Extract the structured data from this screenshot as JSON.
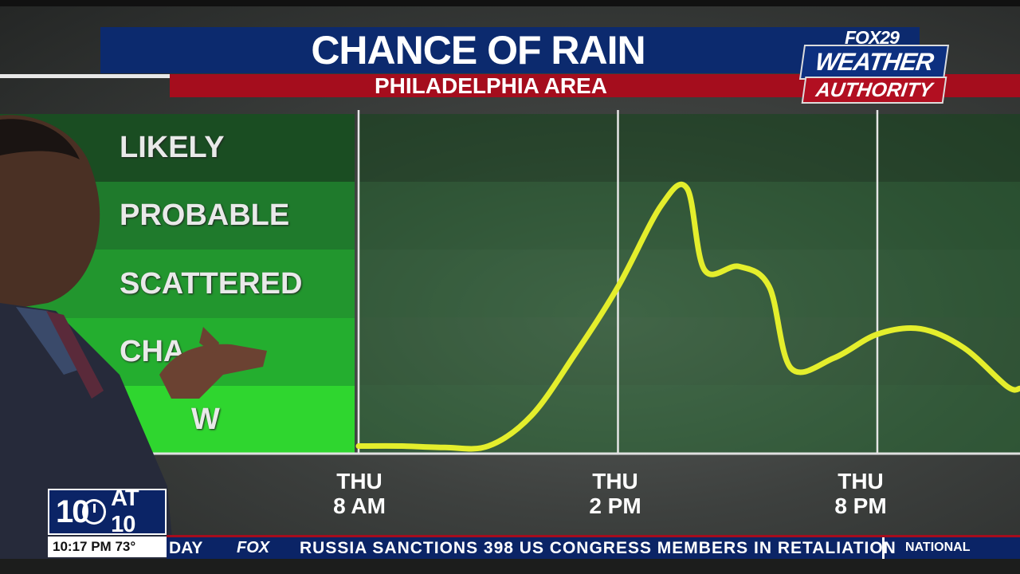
{
  "header": {
    "title": "CHANCE OF RAIN",
    "subtitle": "PHILADELPHIA AREA"
  },
  "logo": {
    "network": "FOX29",
    "line1": "WEATHER",
    "line2": "AUTHORITY"
  },
  "scale": {
    "levels": [
      "LIKELY",
      "PROBABLE",
      "SCATTERED",
      "CHANCE",
      "LOW"
    ],
    "visible_text": [
      "LIKELY",
      "PROBABLE",
      "SCATTERED",
      "CHA",
      "W"
    ],
    "colors": [
      "#1a4d22",
      "#1f7a2c",
      "#22962e",
      "#24ae2f",
      "#2fd62f"
    ]
  },
  "chart_data": {
    "type": "line",
    "title": "CHANCE OF RAIN",
    "subtitle": "PHILADELPHIA AREA",
    "x_tick_labels": [
      {
        "day": "THU",
        "time": "8 AM"
      },
      {
        "day": "THU",
        "time": "2 PM"
      },
      {
        "day": "THU",
        "time": "8 PM"
      }
    ],
    "x_unit": "hour",
    "xlim": [
      8,
      23.3
    ],
    "ylim": [
      0,
      5
    ],
    "y_categories": [
      "LOW",
      "CHANCE",
      "SCATTERED",
      "PROBABLE",
      "LIKELY"
    ],
    "series": [
      {
        "color": "#e4ee2c",
        "x": [
          8,
          9,
          10,
          11,
          12,
          13,
          14,
          15,
          15.6,
          16,
          16.8,
          17.5,
          18,
          19,
          20,
          21,
          22,
          23,
          23.3
        ],
        "y": [
          0.1,
          0.1,
          0.08,
          0.1,
          0.55,
          1.45,
          2.45,
          3.65,
          3.9,
          2.7,
          2.75,
          2.45,
          1.25,
          1.4,
          1.75,
          1.83,
          1.55,
          0.98,
          0.95
        ]
      }
    ],
    "grid": true,
    "vertical_gridlines_at": [
      8,
      14,
      20
    ]
  },
  "lower_third": {
    "show_number": "10",
    "show_at": "AT 10",
    "time": "10:17 PM",
    "temp": "73°",
    "ticker_left": "DAY",
    "ticker_network": "FOX",
    "ticker_headline": "RUSSIA SANCTIONS 398 US CONGRESS MEMBERS IN RETALIATION",
    "ticker_section": "NATIONAL"
  }
}
